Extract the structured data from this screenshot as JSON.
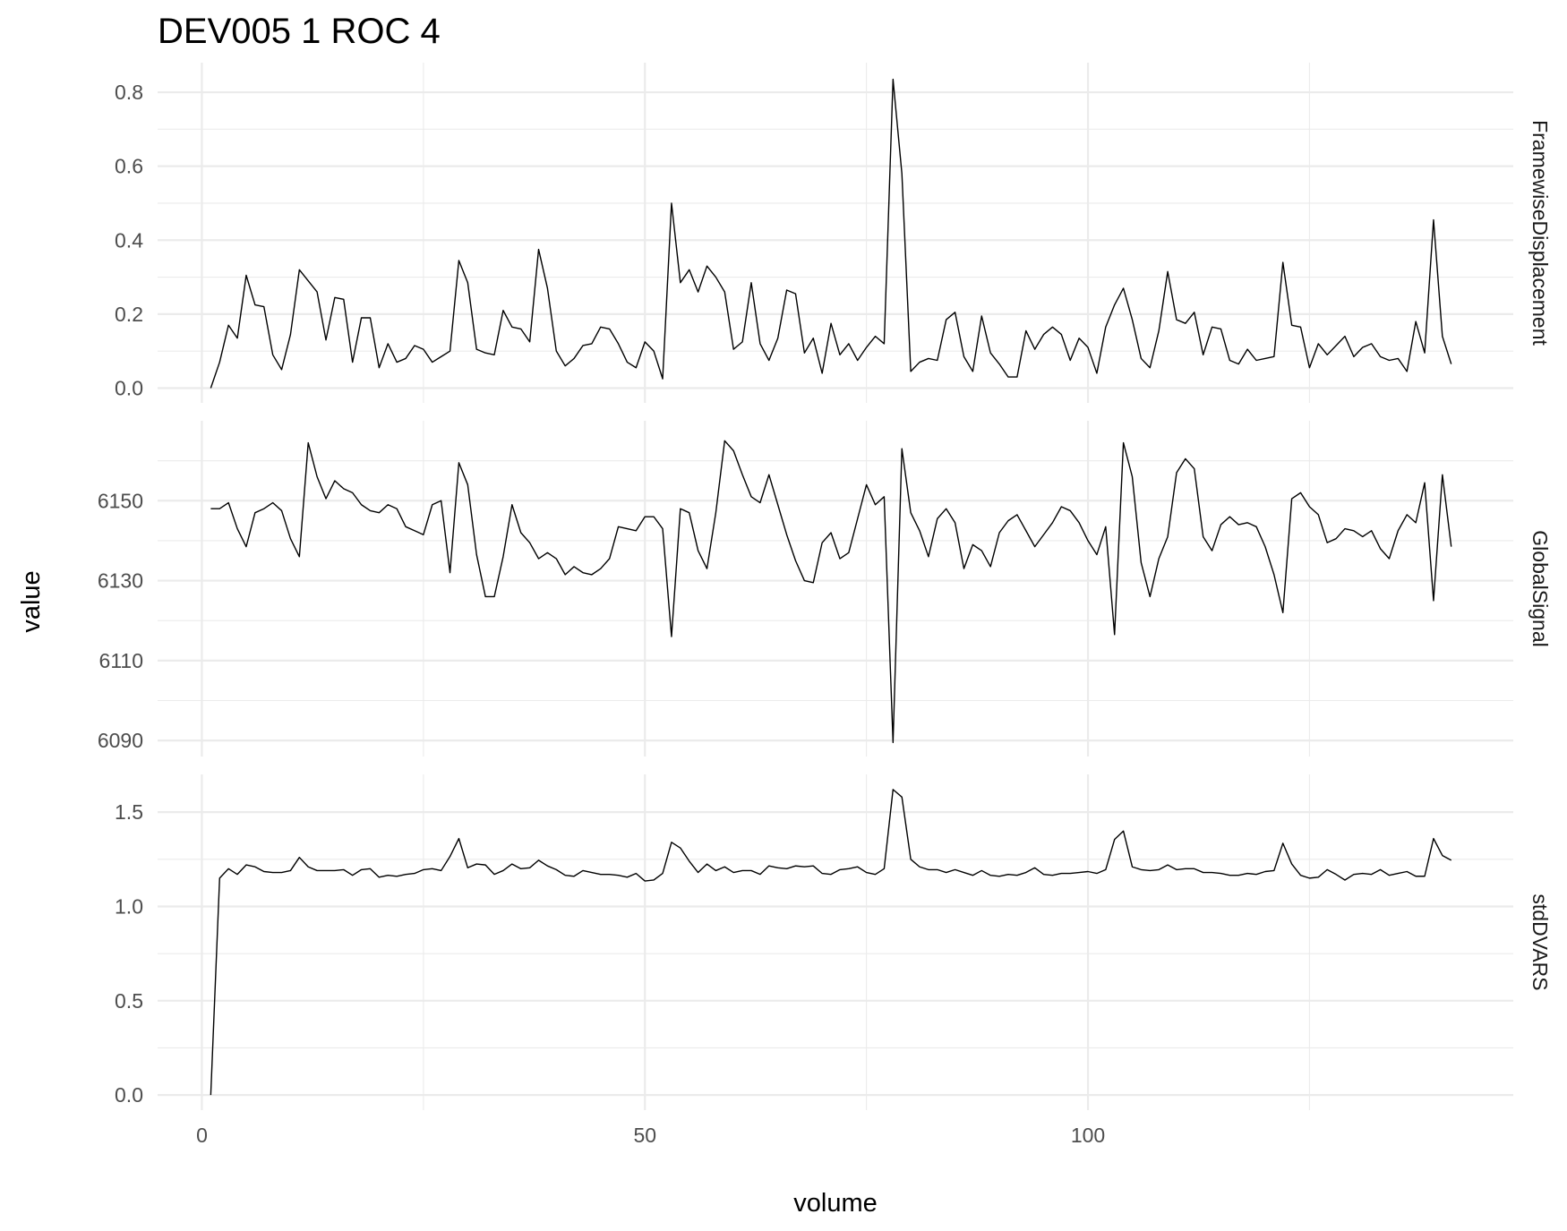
{
  "chart_data": {
    "type": "line",
    "title": "DEV005  1  ROC  4",
    "xlabel": "volume",
    "ylabel": "value",
    "xlim": [
      -5,
      148
    ],
    "x_ticks": [
      0,
      50,
      100
    ],
    "x_minor_ticks": [
      25,
      75,
      125
    ],
    "x_tick_labels": [
      "0",
      "50",
      "100"
    ],
    "x_start": 1,
    "grid": true,
    "facets": [
      {
        "name": "FramewiseDisplacement",
        "ylim": [
          -0.04,
          0.88
        ],
        "y_ticks": [
          0.0,
          0.2,
          0.4,
          0.6,
          0.8
        ],
        "y_tick_labels": [
          "0.0",
          "0.2",
          "0.4",
          "0.6",
          "0.8"
        ],
        "y_minor_ticks": [
          0.1,
          0.3,
          0.5,
          0.7
        ],
        "values": [
          0.0,
          0.07,
          0.17,
          0.135,
          0.305,
          0.225,
          0.22,
          0.09,
          0.05,
          0.145,
          0.32,
          0.29,
          0.26,
          0.13,
          0.245,
          0.24,
          0.07,
          0.19,
          0.19,
          0.055,
          0.12,
          0.07,
          0.08,
          0.115,
          0.105,
          0.07,
          0.085,
          0.1,
          0.345,
          0.285,
          0.105,
          0.095,
          0.09,
          0.21,
          0.165,
          0.16,
          0.125,
          0.375,
          0.27,
          0.1,
          0.06,
          0.08,
          0.115,
          0.12,
          0.165,
          0.16,
          0.12,
          0.07,
          0.055,
          0.125,
          0.1,
          0.025,
          0.5,
          0.285,
          0.32,
          0.26,
          0.33,
          0.3,
          0.26,
          0.105,
          0.125,
          0.285,
          0.12,
          0.075,
          0.135,
          0.265,
          0.255,
          0.095,
          0.135,
          0.04,
          0.175,
          0.09,
          0.12,
          0.075,
          0.11,
          0.14,
          0.12,
          0.835,
          0.58,
          0.045,
          0.07,
          0.08,
          0.075,
          0.185,
          0.205,
          0.085,
          0.045,
          0.195,
          0.095,
          0.065,
          0.03,
          0.03,
          0.155,
          0.105,
          0.145,
          0.165,
          0.145,
          0.075,
          0.135,
          0.11,
          0.04,
          0.165,
          0.225,
          0.27,
          0.185,
          0.08,
          0.055,
          0.155,
          0.315,
          0.185,
          0.175,
          0.205,
          0.09,
          0.165,
          0.16,
          0.075,
          0.065,
          0.105,
          0.075,
          0.08,
          0.085,
          0.34,
          0.17,
          0.165,
          0.055,
          0.12,
          0.09,
          0.115,
          0.14,
          0.085,
          0.11,
          0.12,
          0.085,
          0.075,
          0.08,
          0.045,
          0.18,
          0.095,
          0.455,
          0.14,
          0.065
        ]
      },
      {
        "name": "GlobalSignal",
        "ylim": [
          6086,
          6170
        ],
        "y_ticks": [
          6090,
          6110,
          6130,
          6150
        ],
        "y_tick_labels": [
          "6090",
          "6110",
          "6130",
          "6150"
        ],
        "y_minor_ticks": [
          6100,
          6120,
          6140,
          6160
        ],
        "values": [
          6148,
          6148,
          6149.5,
          6143,
          6138.5,
          6147,
          6148,
          6149.5,
          6147.5,
          6140.5,
          6136,
          6164.5,
          6156,
          6150.5,
          6155,
          6153,
          6152,
          6149,
          6147.5,
          6147,
          6149,
          6148,
          6143.5,
          6142.5,
          6141.5,
          6149,
          6150,
          6132,
          6159.5,
          6154,
          6136.5,
          6126,
          6126,
          6136,
          6149,
          6142,
          6139.5,
          6135.5,
          6137,
          6135.5,
          6131.5,
          6133.5,
          6132,
          6131.5,
          6133,
          6135.5,
          6143.5,
          6143,
          6142.5,
          6146,
          6146,
          6143,
          6116,
          6148,
          6147,
          6137.5,
          6133,
          6147,
          6165,
          6162.5,
          6156.5,
          6151,
          6149.5,
          6156.5,
          6149,
          6141.5,
          6135,
          6130,
          6129.5,
          6139.5,
          6142,
          6135.5,
          6137,
          6145.5,
          6154,
          6149,
          6151,
          6089.5,
          6163,
          6147,
          6142.5,
          6136,
          6145.5,
          6148,
          6144.5,
          6133,
          6139,
          6137.5,
          6133.5,
          6142,
          6145,
          6146.5,
          6142.5,
          6138.5,
          6141.5,
          6144.5,
          6148.5,
          6147.5,
          6144.5,
          6140,
          6136.5,
          6143.5,
          6116.5,
          6164.5,
          6156,
          6134.5,
          6126,
          6135.5,
          6141,
          6157,
          6160.5,
          6158,
          6141,
          6137.5,
          6144,
          6146,
          6144,
          6144.5,
          6143.5,
          6138.5,
          6131.5,
          6122,
          6150.5,
          6152,
          6148.5,
          6146.5,
          6139.5,
          6140.5,
          6143,
          6142.5,
          6141,
          6142.5,
          6138,
          6135.5,
          6142.5,
          6146.5,
          6144.5,
          6154.5,
          6125,
          6156.5,
          6138.5
        ]
      },
      {
        "name": "stdDVARS",
        "ylim": [
          -0.08,
          1.7
        ],
        "y_ticks": [
          0.0,
          0.5,
          1.0,
          1.5
        ],
        "y_tick_labels": [
          "0.0",
          "0.5",
          "1.0",
          "1.5"
        ],
        "y_minor_ticks": [
          0.25,
          0.75,
          1.25
        ],
        "values": [
          0.0,
          1.15,
          1.2,
          1.17,
          1.22,
          1.21,
          1.185,
          1.18,
          1.18,
          1.19,
          1.26,
          1.21,
          1.19,
          1.19,
          1.19,
          1.195,
          1.165,
          1.195,
          1.2,
          1.155,
          1.165,
          1.16,
          1.17,
          1.175,
          1.195,
          1.2,
          1.19,
          1.265,
          1.36,
          1.205,
          1.225,
          1.22,
          1.17,
          1.19,
          1.225,
          1.2,
          1.205,
          1.245,
          1.215,
          1.195,
          1.165,
          1.16,
          1.19,
          1.18,
          1.17,
          1.17,
          1.165,
          1.155,
          1.175,
          1.135,
          1.14,
          1.175,
          1.34,
          1.31,
          1.24,
          1.18,
          1.225,
          1.19,
          1.21,
          1.18,
          1.19,
          1.19,
          1.17,
          1.215,
          1.205,
          1.2,
          1.215,
          1.21,
          1.215,
          1.175,
          1.17,
          1.195,
          1.2,
          1.21,
          1.18,
          1.17,
          1.2,
          1.62,
          1.58,
          1.25,
          1.21,
          1.195,
          1.195,
          1.18,
          1.195,
          1.18,
          1.165,
          1.19,
          1.165,
          1.16,
          1.17,
          1.165,
          1.18,
          1.205,
          1.17,
          1.165,
          1.175,
          1.175,
          1.18,
          1.185,
          1.175,
          1.195,
          1.355,
          1.4,
          1.21,
          1.195,
          1.19,
          1.195,
          1.22,
          1.195,
          1.2,
          1.2,
          1.18,
          1.18,
          1.175,
          1.165,
          1.165,
          1.175,
          1.17,
          1.185,
          1.19,
          1.335,
          1.225,
          1.165,
          1.15,
          1.155,
          1.195,
          1.17,
          1.14,
          1.17,
          1.175,
          1.17,
          1.195,
          1.165,
          1.175,
          1.185,
          1.16,
          1.16,
          1.36,
          1.27,
          1.245
        ]
      }
    ]
  }
}
